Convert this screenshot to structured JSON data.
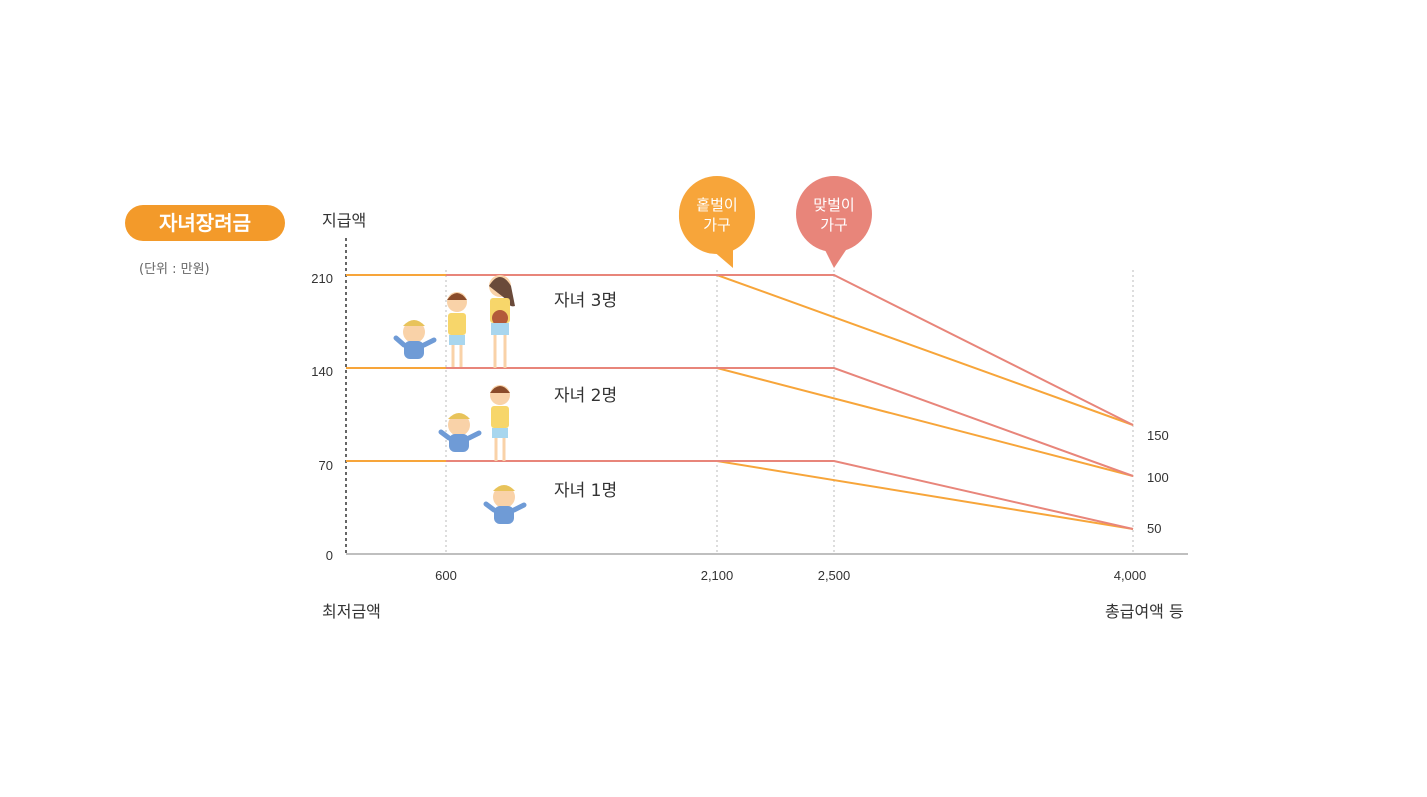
{
  "badge": {
    "label": "자녀장려금",
    "color": "#f39a2a"
  },
  "unit_note": "(단위 : 만원)",
  "chart_data": {
    "type": "line",
    "ylabel": "지급액",
    "xlabel_left": "최저금액",
    "xlabel_right": "총급여액 등",
    "y_ticks": [
      "210",
      "140",
      "70",
      "0"
    ],
    "x_ticks": [
      "600",
      "2,100",
      "2,500",
      "4,000"
    ],
    "right_values": [
      "150",
      "100",
      "50"
    ],
    "row_labels": [
      "자녀 3명",
      "자녀 2명",
      "자녀 1명"
    ],
    "bubbles": [
      {
        "label1": "홑벌이",
        "label2": "가구",
        "color": "#f7a53a"
      },
      {
        "label1": "맞벌이",
        "label2": "가구",
        "color": "#e8857a"
      }
    ],
    "colors": {
      "single_earner": "#f7a53a",
      "dual_earner": "#e8857a"
    },
    "series": [
      {
        "name": "홑벌이 가구",
        "children": 3,
        "x": [
          0,
          600,
          2100,
          4000
        ],
        "y": [
          210,
          210,
          210,
          150
        ]
      },
      {
        "name": "맞벌이 가구",
        "children": 3,
        "x": [
          600,
          2100,
          2500,
          4000
        ],
        "y": [
          210,
          210,
          210,
          150
        ]
      },
      {
        "name": "홑벌이 가구",
        "children": 2,
        "x": [
          0,
          600,
          2100,
          4000
        ],
        "y": [
          140,
          140,
          140,
          100
        ]
      },
      {
        "name": "맞벌이 가구",
        "children": 2,
        "x": [
          600,
          2100,
          2500,
          4000
        ],
        "y": [
          140,
          140,
          140,
          100
        ]
      },
      {
        "name": "홑벌이 가구",
        "children": 1,
        "x": [
          0,
          600,
          2100,
          4000
        ],
        "y": [
          70,
          70,
          70,
          50
        ]
      },
      {
        "name": "맞벌이 가구",
        "children": 1,
        "x": [
          600,
          2100,
          2500,
          4000
        ],
        "y": [
          70,
          70,
          70,
          50
        ]
      }
    ]
  }
}
